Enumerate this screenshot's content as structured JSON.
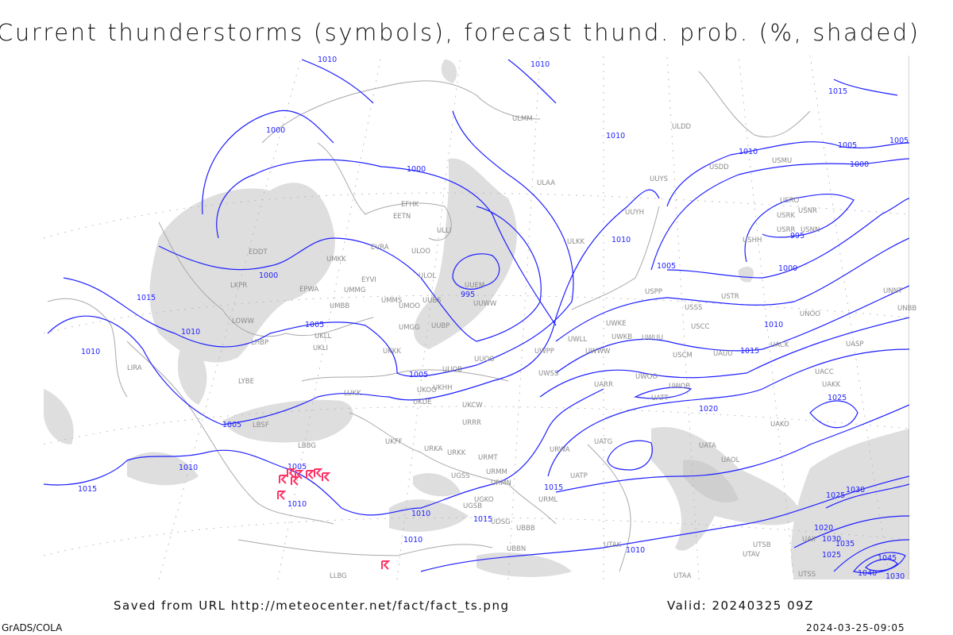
{
  "title": "Current thunderstorms (symbols), forecast thund. prob. (%, shaded)",
  "footer": {
    "source": "Saved from URL http://meteocenter.net/fact/fact_ts.png",
    "valid": "Valid: 20240325 09Z",
    "software": "GrADS/COLA",
    "timestamp": "2024-03-25-09:05"
  },
  "colors": {
    "isobar": "#1f1fff",
    "thunderstorm_symbol": "#ff3366",
    "shading": "#dedede",
    "coast": "#a8a8a8",
    "station": "#8a8a8a"
  },
  "symbols": {
    "thunderstorm": "thunderstorm-icon"
  },
  "isobar_labels": [
    "1010",
    "1010",
    "1000",
    "1000",
    "1000",
    "995",
    "1005",
    "1005",
    "1010",
    "1010",
    "1015",
    "1005",
    "1010",
    "1005",
    "1010",
    "1015",
    "1010",
    "1010",
    "1010",
    "1005",
    "1000",
    "995",
    "1000",
    "1005",
    "1010",
    "1015",
    "1020",
    "1025",
    "1015",
    "1010",
    "1025",
    "1030",
    "1020",
    "1030",
    "1035",
    "1040",
    "1045",
    "1030",
    "1025",
    "1015",
    "1010",
    "1005",
    "1010",
    "1015"
  ],
  "stations": [
    "EFHK",
    "EETN",
    "ULLI",
    "EVRA",
    "ULOO",
    "UMKK",
    "ULOL",
    "EYVI",
    "EPWA",
    "UMMG",
    "UUEM",
    "LKPR",
    "EDDT",
    "UMMS",
    "UMOO",
    "UUBS",
    "UUWW",
    "UMBB",
    "LOWW",
    "UMGG",
    "UUBP",
    "UKLL",
    "LHBP",
    "UKLI",
    "UKKK",
    "UUOO",
    "UUOB",
    "LYBE",
    "UKHH",
    "UKOO",
    "UKDE",
    "LUKK",
    "LIRA",
    "LBSF",
    "LBBG",
    "UKFF",
    "URRR",
    "UKCW",
    "URKA",
    "URKK",
    "URMT",
    "URMM",
    "URMN",
    "UGSS",
    "UGSB",
    "UGKO",
    "UBBB",
    "UDSG",
    "UBBN",
    "UTAK",
    "UTAA",
    "LLBG",
    "ULAA",
    "ULMM",
    "ULDD",
    "USDD",
    "USMU",
    "UUYS",
    "UUYH",
    "ULKK",
    "USRR",
    "USRK",
    "USNR",
    "USRO",
    "USNN",
    "USHH",
    "USPP",
    "USTR",
    "USSS",
    "UNOO",
    "USCC",
    "UWKE",
    "UWKB",
    "UWUU",
    "UWLL",
    "UWPP",
    "UWWW",
    "USCM",
    "UACK",
    "UAUU",
    "UASP",
    "UNNT",
    "UNBB",
    "UWSS",
    "UACC",
    "UWOO",
    "UARR",
    "UWOB",
    "UATT",
    "UAKK",
    "UATG",
    "URWA",
    "UATP",
    "URML",
    "UATA",
    "UAOL",
    "UAKO",
    "UAII",
    "UTSS",
    "UTAV",
    "UTSB"
  ]
}
